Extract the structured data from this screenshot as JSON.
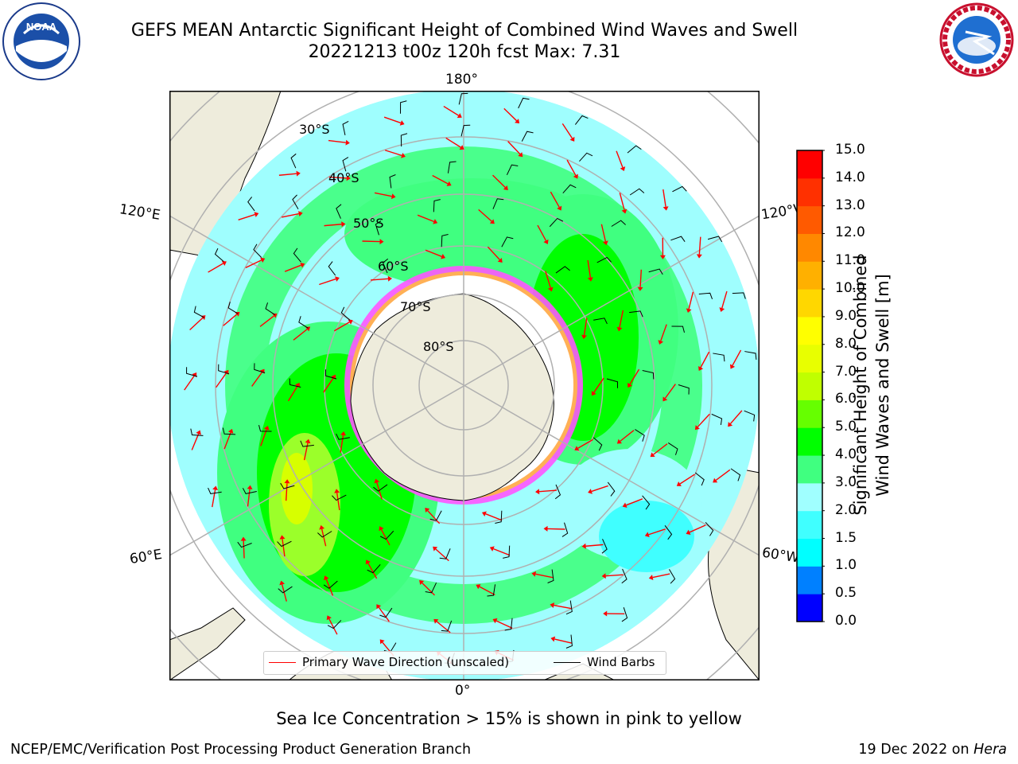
{
  "title": {
    "line1": "GEFS MEAN Antarctic Significant Height of Combined Wind Waves and Swell",
    "line2": "20221213 t00z 120h fcst   Max: 7.31"
  },
  "logos": {
    "left": {
      "icon": "noaa-logo",
      "text": "NOAA",
      "ring_text": "NATIONAL OCEANIC AND ATMOSPHERIC ADMINISTRATION · U.S. DEPARTMENT OF COMMERCE"
    },
    "right": {
      "icon": "nws-logo",
      "ring_text": "NATIONAL WEATHER SERVICE"
    }
  },
  "map": {
    "projection": "south polar stereographic",
    "longitude_labels": {
      "top": "180°",
      "bottom": "0°",
      "upper_left": "120°E",
      "upper_right": "120°W",
      "lower_left": "60°E",
      "lower_right": "60°W"
    },
    "latitude_labels": [
      "30°S",
      "40°S",
      "50°S",
      "60°S",
      "70°S",
      "80°S"
    ],
    "colors": {
      "ocean_low": "#9ffefe",
      "land": "#eeecdc",
      "ice": "#ffffff",
      "grid": "#b0b0b0",
      "arrow": "#ff0000",
      "barb": "#000000"
    }
  },
  "legend": {
    "items": [
      {
        "label": "Primary Wave Direction (unscaled)",
        "color": "#ff0000"
      },
      {
        "label": "Wind Barbs",
        "color": "#000000"
      }
    ]
  },
  "colorbar": {
    "label_line1": "Significant Height of Combined",
    "label_line2": "Wind Waves and Swell [m]",
    "ticks": [
      "0.0",
      "0.5",
      "1.0",
      "1.5",
      "2.0",
      "3.0",
      "4.0",
      "5.0",
      "6.0",
      "7.0",
      "8.0",
      "9.0",
      "10.0",
      "11.0",
      "12.0",
      "13.0",
      "14.0",
      "15.0"
    ],
    "colors": [
      "#0000ff",
      "#0080ff",
      "#00ffff",
      "#40ffff",
      "#a0ffff",
      "#40ff80",
      "#00ff00",
      "#66ff00",
      "#c0ff00",
      "#e8ff00",
      "#ffff00",
      "#ffd700",
      "#ffb000",
      "#ff8800",
      "#ff5a00",
      "#ff3000",
      "#ff0000"
    ]
  },
  "note": "Sea Ice Concentration > 15% is shown in pink to yellow",
  "footer": {
    "left": "NCEP/EMC/Verification Post Processing Product Generation Branch",
    "right_prefix": "19 Dec 2022 on ",
    "right_italic": "Hera"
  }
}
